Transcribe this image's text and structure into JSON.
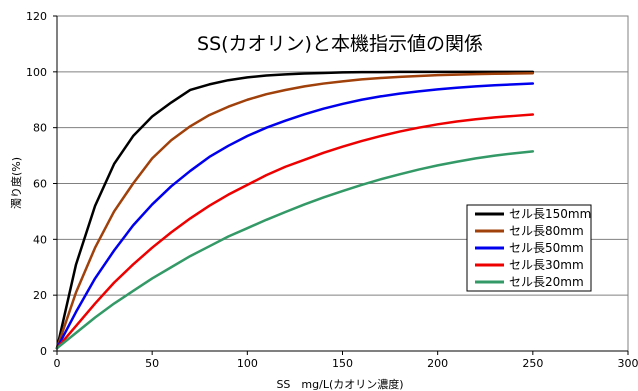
{
  "chart_data": {
    "type": "line",
    "title": "SS(カオリン)と本機指示値の関係",
    "xlabel": "SS　mg/L(カオリン濃度)",
    "ylabel": "濁り度(%)",
    "xlim": [
      0,
      300
    ],
    "ylim": [
      0,
      120
    ],
    "xticks": [
      0,
      50,
      100,
      150,
      200,
      250,
      300
    ],
    "yticks": [
      0,
      20,
      40,
      60,
      80,
      100,
      120
    ],
    "grid": "horizontal",
    "legend_position": "right",
    "x": [
      0,
      10,
      20,
      30,
      40,
      50,
      60,
      70,
      80,
      90,
      100,
      110,
      120,
      130,
      140,
      150,
      160,
      170,
      180,
      190,
      200,
      210,
      220,
      230,
      240,
      250
    ],
    "series": [
      {
        "name": "セル長150mm",
        "color": "#000000",
        "values": [
          1,
          31,
          52,
          67,
          77,
          84,
          89,
          93.5,
          95.5,
          97,
          98,
          98.7,
          99.1,
          99.4,
          99.6,
          99.8,
          99.9,
          99.9,
          100,
          100,
          100,
          100,
          100,
          100,
          100,
          100
        ]
      },
      {
        "name": "セル長80mm",
        "color": "#a0400a",
        "values": [
          1,
          21,
          37,
          50,
          60,
          69,
          75.5,
          80.5,
          84.5,
          87.5,
          90,
          92,
          93.5,
          94.8,
          95.8,
          96.6,
          97.3,
          97.8,
          98.2,
          98.5,
          98.8,
          99,
          99.2,
          99.3,
          99.4,
          99.5
        ]
      },
      {
        "name": "セル長50mm",
        "color": "#0000ee",
        "values": [
          1,
          14,
          26,
          36,
          45,
          52.5,
          59,
          64.5,
          69.5,
          73.5,
          77,
          80,
          82.5,
          84.8,
          86.8,
          88.5,
          90,
          91.2,
          92.2,
          93,
          93.7,
          94.3,
          94.8,
          95.2,
          95.5,
          95.8
        ]
      },
      {
        "name": "セル長30mm",
        "color": "#ee0000",
        "values": [
          1,
          9,
          17,
          24.5,
          31,
          37,
          42.5,
          47.5,
          52,
          56,
          59.5,
          63,
          66,
          68.5,
          71,
          73.2,
          75.2,
          77,
          78.6,
          80,
          81.2,
          82.2,
          83,
          83.7,
          84.2,
          84.7
        ]
      },
      {
        "name": "セル長20mm",
        "color": "#339966",
        "values": [
          1,
          6.5,
          12,
          17,
          21.5,
          26,
          30,
          34,
          37.5,
          41,
          44,
          47,
          49.8,
          52.5,
          55,
          57.3,
          59.5,
          61.5,
          63.3,
          65,
          66.5,
          67.8,
          69,
          70,
          70.8,
          71.5
        ]
      }
    ]
  }
}
